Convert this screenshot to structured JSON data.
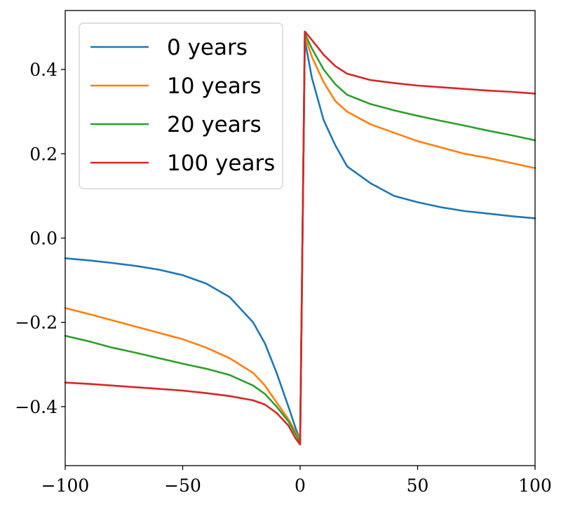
{
  "chart_data": {
    "type": "line",
    "title": "",
    "xlabel": "",
    "ylabel": "",
    "xlim": [
      -100,
      100
    ],
    "ylim": [
      -0.54,
      0.54
    ],
    "xticks": [
      -100,
      -50,
      0,
      50,
      100
    ],
    "xtick_labels": [
      "−100",
      "−50",
      "0",
      "50",
      "100"
    ],
    "yticks": [
      -0.4,
      -0.2,
      0.0,
      0.2,
      0.4
    ],
    "ytick_labels": [
      "−0.4",
      "−0.2",
      "0.0",
      "0.2",
      "0.4"
    ],
    "grid": false,
    "legend_position": "top-left",
    "x": [
      -100,
      -90,
      -80,
      -70,
      -60,
      -50,
      -40,
      -30,
      -20,
      -15,
      -10,
      -5,
      -2,
      0,
      2,
      5,
      10,
      15,
      20,
      30,
      40,
      50,
      60,
      70,
      80,
      90,
      100
    ],
    "series": [
      {
        "name": "0 years",
        "color": "#1f77b4",
        "values": [
          -0.048,
          -0.053,
          -0.059,
          -0.066,
          -0.075,
          -0.088,
          -0.108,
          -0.14,
          -0.2,
          -0.25,
          -0.32,
          -0.4,
          -0.45,
          -0.48,
          0.47,
          0.38,
          0.28,
          0.22,
          0.17,
          0.13,
          0.1,
          0.085,
          0.073,
          0.064,
          0.058,
          0.052,
          0.047
        ]
      },
      {
        "name": "10 years",
        "color": "#ff7f0e",
        "values": [
          -0.166,
          -0.18,
          -0.195,
          -0.21,
          -0.225,
          -0.24,
          -0.26,
          -0.285,
          -0.32,
          -0.35,
          -0.39,
          -0.43,
          -0.46,
          -0.48,
          0.48,
          0.43,
          0.37,
          0.325,
          0.3,
          0.27,
          0.25,
          0.23,
          0.215,
          0.2,
          0.19,
          0.178,
          0.166
        ]
      },
      {
        "name": "20 years",
        "color": "#2ca02c",
        "values": [
          -0.232,
          -0.245,
          -0.26,
          -0.272,
          -0.285,
          -0.298,
          -0.31,
          -0.325,
          -0.35,
          -0.37,
          -0.4,
          -0.435,
          -0.465,
          -0.485,
          0.485,
          0.45,
          0.4,
          0.365,
          0.34,
          0.318,
          0.303,
          0.29,
          0.278,
          0.267,
          0.255,
          0.244,
          0.232
        ]
      },
      {
        "name": "100 years",
        "color": "#d62728",
        "values": [
          -0.343,
          -0.346,
          -0.35,
          -0.354,
          -0.358,
          -0.362,
          -0.368,
          -0.375,
          -0.385,
          -0.395,
          -0.415,
          -0.445,
          -0.475,
          -0.49,
          0.49,
          0.47,
          0.435,
          0.408,
          0.39,
          0.375,
          0.368,
          0.362,
          0.358,
          0.354,
          0.35,
          0.347,
          0.343
        ]
      }
    ]
  }
}
